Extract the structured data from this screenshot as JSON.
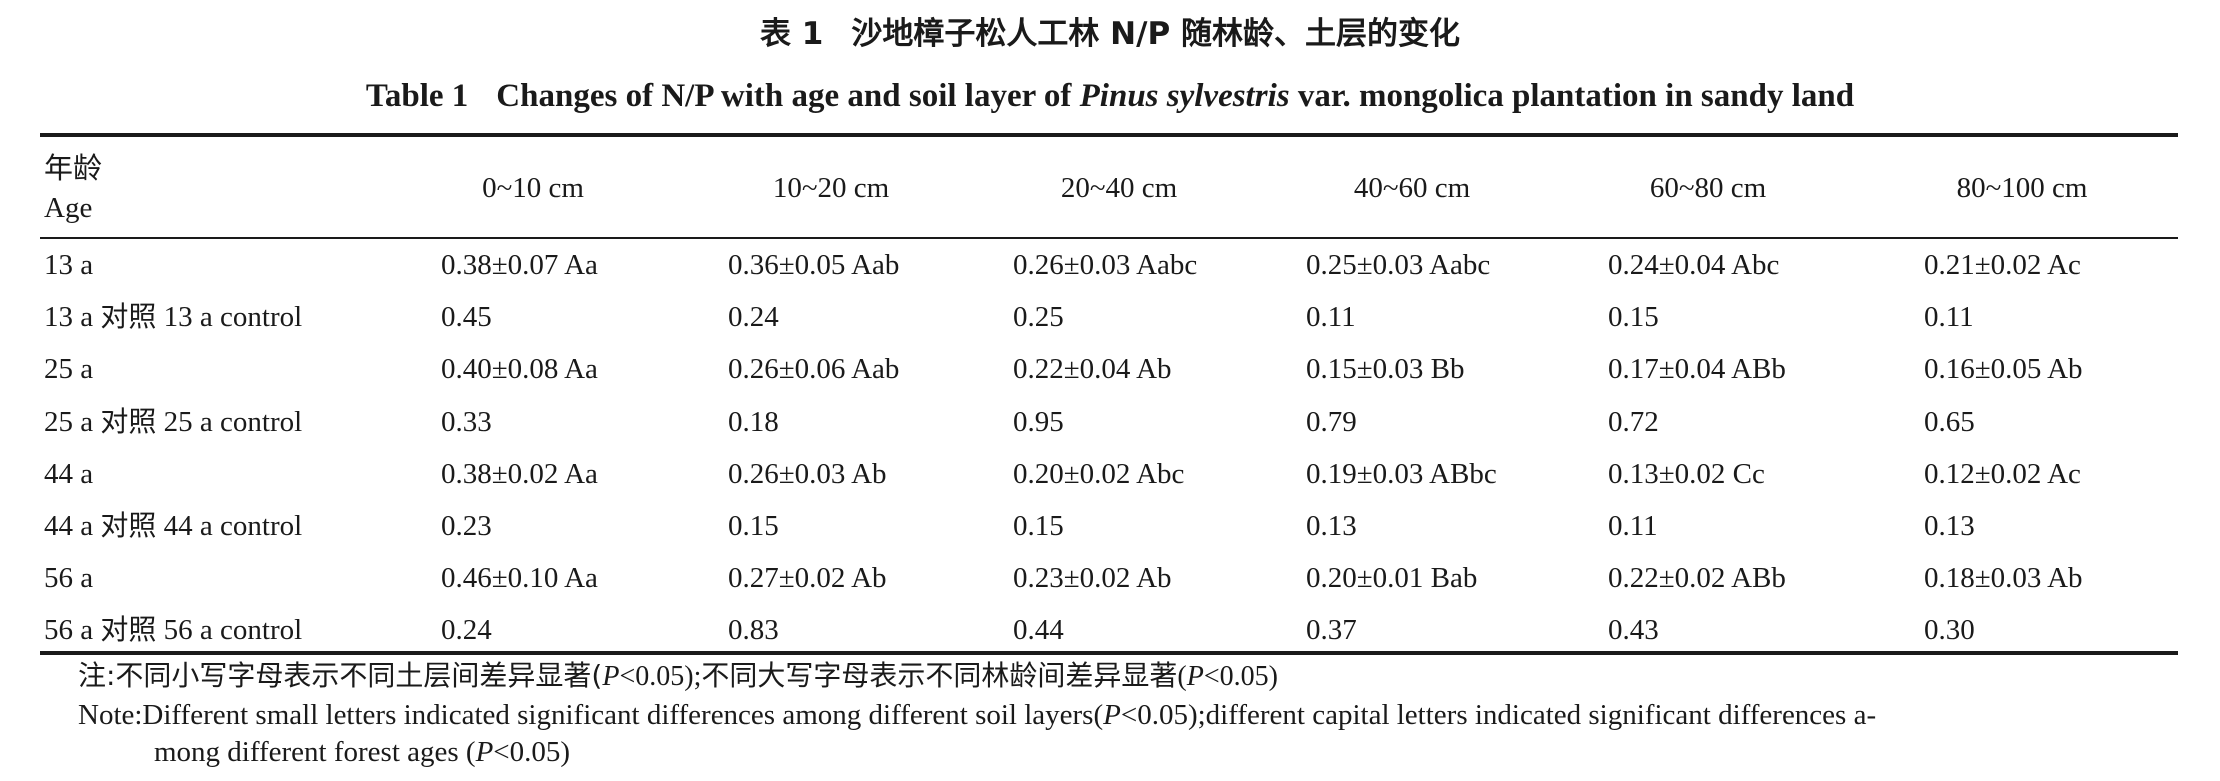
{
  "caption": {
    "cn_label": "表 1",
    "cn_text": "沙地樟子松人工林 N/P 随林龄、土层的变化",
    "en_label": "Table 1",
    "en_text_pre": "Changes of N/P with age and soil layer of ",
    "en_text_italic": "Pinus sylvestris",
    "en_text_post": " var. mongolica plantation in sandy land"
  },
  "table": {
    "age_header_cn": "年龄",
    "age_header_en": "Age",
    "columns": [
      "0~10 cm",
      "10~20 cm",
      "20~40 cm",
      "40~60 cm",
      "60~80 cm",
      "80~100 cm"
    ],
    "rows": [
      {
        "label": "13 a",
        "values": [
          "0.38±0.07 Aa",
          "0.36±0.05 Aab",
          "0.26±0.03 Aabc",
          "0.25±0.03 Aabc",
          "0.24±0.04 Abc",
          "0.21±0.02 Ac"
        ]
      },
      {
        "label": "13 a 对照 13 a control",
        "values": [
          "0.45",
          "0.24",
          "0.25",
          "0.11",
          "0.15",
          "0.11"
        ]
      },
      {
        "label": "25 a",
        "values": [
          "0.40±0.08 Aa",
          "0.26±0.06 Aab",
          "0.22±0.04 Ab",
          "0.15±0.03 Bb",
          "0.17±0.04 ABb",
          "0.16±0.05 Ab"
        ]
      },
      {
        "label": "25 a 对照 25 a control",
        "values": [
          "0.33",
          "0.18",
          "0.95",
          "0.79",
          "0.72",
          "0.65"
        ]
      },
      {
        "label": "44 a",
        "values": [
          "0.38±0.02 Aa",
          "0.26±0.03 Ab",
          "0.20±0.02 Abc",
          "0.19±0.03 ABbc",
          "0.13±0.02 Cc",
          "0.12±0.02 Ac"
        ]
      },
      {
        "label": "44 a 对照 44 a control",
        "values": [
          "0.23",
          "0.15",
          "0.15",
          "0.13",
          "0.11",
          "0.13"
        ]
      },
      {
        "label": "56 a",
        "values": [
          "0.46±0.10 Aa",
          "0.27±0.02 Ab",
          "0.23±0.02 Ab",
          "0.20±0.01 Bab",
          "0.22±0.02 ABb",
          "0.18±0.03 Ab"
        ]
      },
      {
        "label": "56 a 对照 56 a control",
        "values": [
          "0.24",
          "0.83",
          "0.44",
          "0.37",
          "0.43",
          "0.30"
        ]
      }
    ]
  },
  "notes": {
    "cn_a": "注:不同小写字母表示不同土层间差异显著(",
    "cn_p1": "P",
    "cn_b": "<0.05);不同大写字母表示不同林龄间差异显著(",
    "cn_p2": "P",
    "cn_c": "<0.05)",
    "en1_a": "Note:Different small letters indicated significant differences among different soil layers(",
    "en1_p": "P",
    "en1_b": "<0.05);different capital letters indicated significant differences a-",
    "en2_a": "mong different forest ages (",
    "en2_p": "P",
    "en2_b": "<0.05)"
  }
}
